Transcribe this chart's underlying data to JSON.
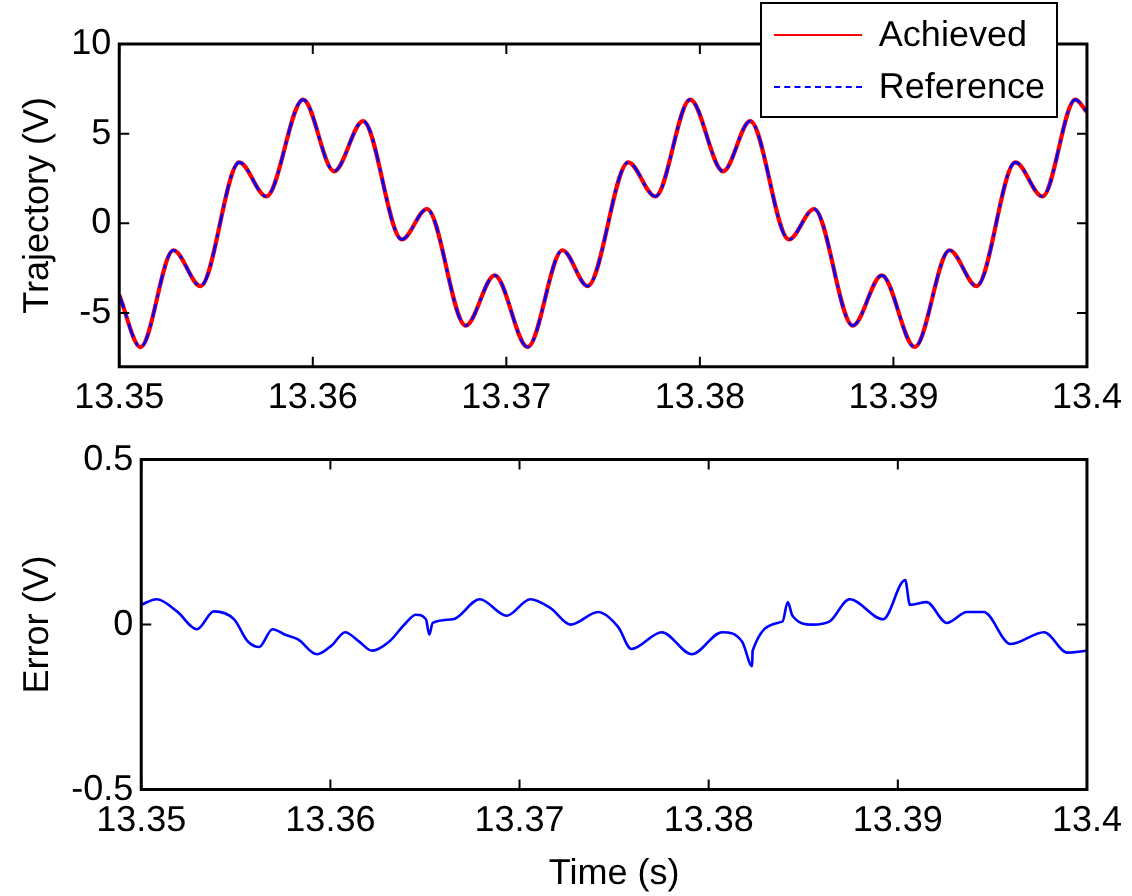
{
  "chart_data": [
    {
      "type": "line",
      "ylabel": "Trajectory (V)",
      "xlim": [
        13.35,
        13.4
      ],
      "xticks": [
        13.35,
        13.36,
        13.37,
        13.38,
        13.39,
        13.4
      ],
      "ylim": [
        -8,
        10
      ],
      "yticks": [
        -5,
        0,
        5,
        10
      ],
      "legend": "top right",
      "marker": "none",
      "grid": false,
      "x": [
        13.35,
        13.3511,
        13.3528,
        13.3542,
        13.3562,
        13.3576,
        13.3595,
        13.3611,
        13.3626,
        13.3646,
        13.3659,
        13.3679,
        13.3694,
        13.3711,
        13.3729,
        13.3742,
        13.3763,
        13.3777,
        13.3795,
        13.3812,
        13.3826,
        13.3846,
        13.3859,
        13.3879,
        13.3894,
        13.3911,
        13.3929,
        13.3943,
        13.3963,
        13.3977,
        13.3994,
        13.4
      ],
      "series": [
        {
          "name": "Achieved",
          "color": "#ff0000",
          "line_style": "solid",
          "values": [
            -4.0,
            -6.9,
            -1.5,
            -3.5,
            3.4,
            1.5,
            6.9,
            2.9,
            5.7,
            -0.9,
            0.8,
            -5.7,
            -2.9,
            -6.9,
            -1.5,
            -3.5,
            3.4,
            1.5,
            6.9,
            2.9,
            5.7,
            -0.9,
            0.8,
            -5.7,
            -2.9,
            -6.9,
            -1.5,
            -3.5,
            3.4,
            1.5,
            6.9,
            6.2
          ]
        },
        {
          "name": "Reference",
          "color": "#0000ff",
          "line_style": "dashed",
          "values": [
            -4.0,
            -6.9,
            -1.5,
            -3.5,
            3.4,
            1.5,
            6.9,
            2.9,
            5.7,
            -0.9,
            0.8,
            -5.7,
            -2.9,
            -6.9,
            -1.5,
            -3.5,
            3.4,
            1.5,
            6.9,
            2.9,
            5.7,
            -0.9,
            0.8,
            -5.7,
            -2.9,
            -6.9,
            -1.5,
            -3.5,
            3.4,
            1.5,
            6.9,
            6.2
          ]
        }
      ]
    },
    {
      "type": "line",
      "xlabel": "Time (s)",
      "ylabel": "Error (V)",
      "xlim": [
        13.35,
        13.4
      ],
      "xticks": [
        13.35,
        13.36,
        13.37,
        13.38,
        13.39,
        13.4
      ],
      "ylim": [
        -0.5,
        0.5
      ],
      "yticks": [
        -0.5,
        0,
        0.5
      ],
      "marker": "none",
      "grid": false,
      "x": [
        13.35,
        13.35082,
        13.35189,
        13.35295,
        13.35384,
        13.35491,
        13.35562,
        13.35623,
        13.35694,
        13.35758,
        13.35829,
        13.35929,
        13.36007,
        13.36078,
        13.36149,
        13.36221,
        13.3631,
        13.36399,
        13.36452,
        13.36505,
        13.36523,
        13.36541,
        13.36648,
        13.3679,
        13.36932,
        13.37057,
        13.37164,
        13.3727,
        13.37415,
        13.37521,
        13.37592,
        13.37752,
        13.37911,
        13.38071,
        13.38177,
        13.3823,
        13.38232,
        13.3839,
        13.38418,
        13.38443,
        13.3855,
        13.38638,
        13.38745,
        13.38922,
        13.39039,
        13.39064,
        13.39152,
        13.39259,
        13.39365,
        13.39454,
        13.39596,
        13.39773,
        13.39897,
        13.4
      ],
      "series": [
        {
          "color": "#0000ff",
          "line_style": "solid",
          "values": [
            0.06,
            0.077,
            0.04,
            -0.014,
            0.04,
            0.016,
            -0.05,
            -0.068,
            -0.014,
            -0.03,
            -0.045,
            -0.09,
            -0.063,
            -0.023,
            -0.05,
            -0.079,
            -0.052,
            0.005,
            0.03,
            0.016,
            -0.03,
            0.005,
            0.016,
            0.077,
            0.027,
            0.077,
            0.05,
            0,
            0.038,
            -0.007,
            -0.074,
            -0.023,
            -0.09,
            -0.023,
            -0.052,
            -0.126,
            -0.08,
            0.009,
            0.068,
            0.027,
            0,
            0.009,
            0.077,
            0.016,
            0.135,
            0.06,
            0.068,
            0.005,
            0.038,
            0.038,
            -0.059,
            -0.023,
            -0.085,
            -0.079
          ]
        }
      ]
    }
  ]
}
